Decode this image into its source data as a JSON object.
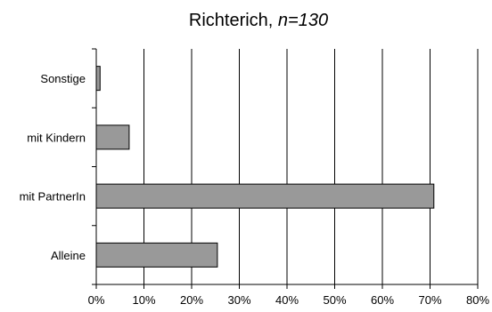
{
  "chart_data": {
    "type": "bar",
    "orientation": "horizontal",
    "title": "Richterich, ",
    "title_italic": "n=130",
    "categories": [
      "Alleine",
      "mit PartnerIn",
      "mit Kindern",
      "Sonstige"
    ],
    "values": [
      25.4,
      70.8,
      6.9,
      0.8
    ],
    "xlim": [
      0,
      80
    ],
    "xticks": [
      0,
      10,
      20,
      30,
      40,
      50,
      60,
      70,
      80
    ],
    "tick_suffix": "%",
    "grid": "vertical",
    "legend": "none",
    "bar_color": "#999999",
    "bar_border": "#000000",
    "xlabel": "",
    "ylabel": ""
  }
}
